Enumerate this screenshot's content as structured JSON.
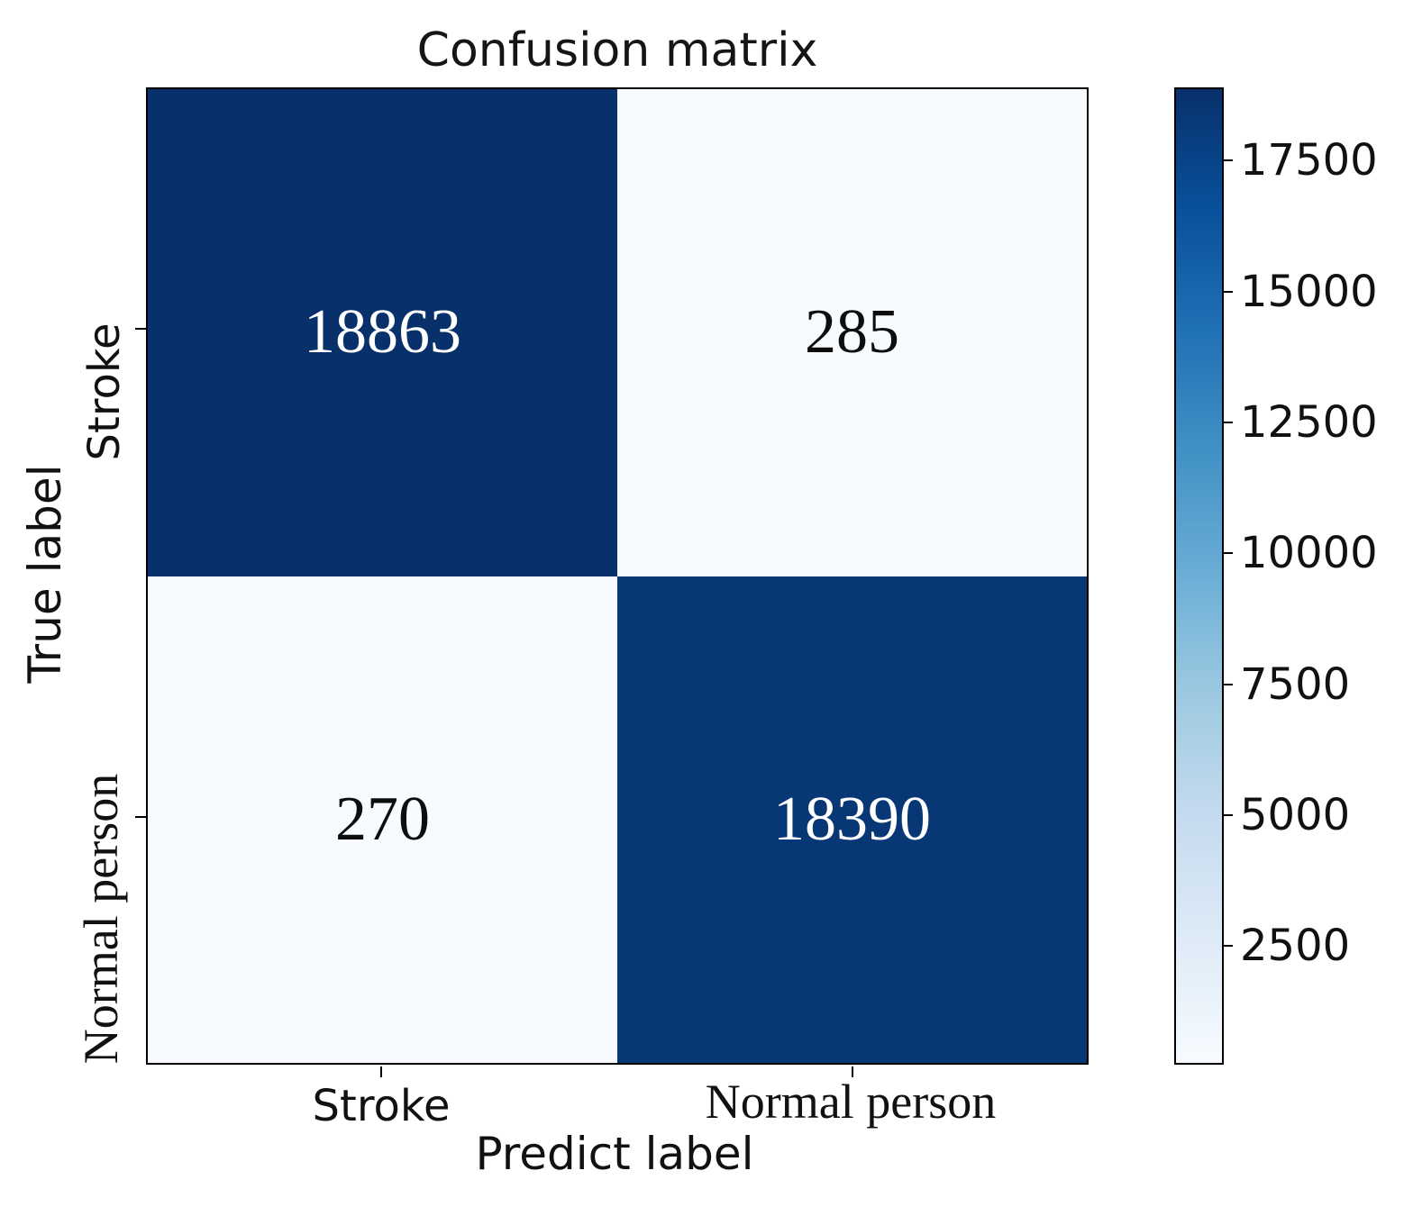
{
  "chart_data": {
    "type": "heatmap",
    "title": "Confusion matrix",
    "xlabel": "Predict label",
    "ylabel": "True label",
    "x_categories": [
      "Stroke",
      "Normal person"
    ],
    "y_categories": [
      "Stroke",
      "Normal person"
    ],
    "matrix": [
      [
        18863,
        285
      ],
      [
        270,
        18390
      ]
    ],
    "vmin": 270,
    "vmax": 18863,
    "colormap": "Blues",
    "grid": false,
    "legend_position": "colorbar-right",
    "cells": [
      {
        "row": "Stroke",
        "col": "Stroke",
        "value": 18863,
        "bg": "#08306b",
        "fg": "#ffffff"
      },
      {
        "row": "Stroke",
        "col": "Normal person",
        "value": 285,
        "bg": "#f7fbfe",
        "fg": "#0d0d0d"
      },
      {
        "row": "Normal person",
        "col": "Stroke",
        "value": 270,
        "bg": "#f7fbff",
        "fg": "#0d0d0d"
      },
      {
        "row": "Normal person",
        "col": "Normal person",
        "value": 18390,
        "bg": "#083775",
        "fg": "#ffffff"
      }
    ],
    "colorbar": {
      "tick_values": [
        2500,
        5000,
        7500,
        10000,
        12500,
        15000,
        17500
      ],
      "gradient_stops": [
        "#f7fbff",
        "#deebf7",
        "#c6dbef",
        "#9ecae1",
        "#6baed6",
        "#4292c6",
        "#2171b5",
        "#08519c",
        "#08306b"
      ]
    }
  }
}
